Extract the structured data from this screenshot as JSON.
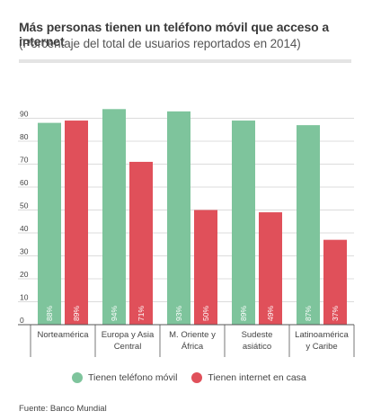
{
  "chart_data": {
    "type": "bar",
    "title": "Más personas tienen un teléfono móvil que acceso a internet",
    "subtitle": "(Porcentaje del total de usuarios reportados en 2014)",
    "categories": [
      [
        "Norteamérica"
      ],
      [
        "Europa y Asia",
        "Central"
      ],
      [
        "M. Oriente y",
        "África"
      ],
      [
        "Sudeste",
        "asiático"
      ],
      [
        "Latinoamérica",
        "y Caribe"
      ]
    ],
    "series": [
      {
        "name": "Tienen teléfono móvil",
        "color": "#7ec49c",
        "values": [
          88,
          94,
          93,
          89,
          87
        ],
        "labels": [
          "88%",
          "94%",
          "93%",
          "89%",
          "87%"
        ]
      },
      {
        "name": "Tienen internet en casa",
        "color": "#e0505a",
        "values": [
          89,
          71,
          50,
          49,
          37
        ],
        "labels": [
          "89%",
          "71%",
          "50%",
          "49%",
          "37%"
        ]
      }
    ],
    "yticks": [
      0,
      10,
      20,
      30,
      40,
      50,
      60,
      70,
      80,
      90
    ],
    "ylim": [
      0,
      100
    ],
    "grid": true,
    "legend": "bottom"
  },
  "source": "Fuente: Banco Mundial"
}
